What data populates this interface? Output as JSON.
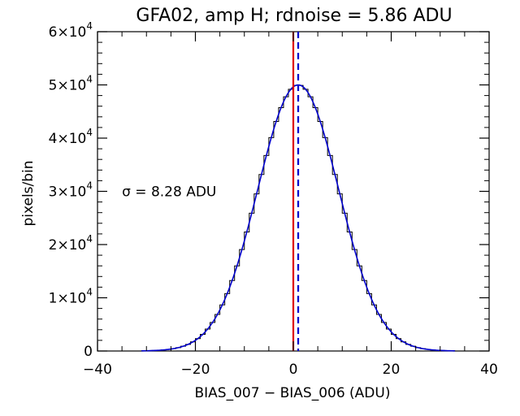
{
  "chart_data": {
    "type": "line",
    "title": "GFA02, amp H; rdnoise = 5.86 ADU",
    "xlabel": "BIAS_007 − BIAS_006 (ADU)",
    "ylabel": "pixels/bin",
    "xlim": [
      -40,
      40
    ],
    "ylim": [
      0,
      60000
    ],
    "x_ticks": [
      {
        "value": -40,
        "label": "−40"
      },
      {
        "value": -20,
        "label": "−20"
      },
      {
        "value": 0,
        "label": "0"
      },
      {
        "value": 20,
        "label": "20"
      },
      {
        "value": 40,
        "label": "40"
      }
    ],
    "y_ticks": [
      {
        "value": 0,
        "mantissa": "0",
        "exp": ""
      },
      {
        "value": 10000,
        "mantissa": "1×10",
        "exp": "4"
      },
      {
        "value": 20000,
        "mantissa": "2×10",
        "exp": "4"
      },
      {
        "value": 30000,
        "mantissa": "3×10",
        "exp": "4"
      },
      {
        "value": 40000,
        "mantissa": "4×10",
        "exp": "4"
      },
      {
        "value": 50000,
        "mantissa": "5×10",
        "exp": "4"
      },
      {
        "value": 60000,
        "mantissa": "6×10",
        "exp": "4"
      }
    ],
    "grid": false,
    "histogram": {
      "bin_width": 1,
      "range": [
        -31,
        33
      ],
      "peak": 50000,
      "mean": 1.0,
      "sigma": 8.28
    },
    "fit_curve": {
      "peak": 50000,
      "mean": 1.0,
      "sigma": 8.28,
      "color": "#0000cc"
    },
    "vlines": [
      {
        "x": 0,
        "color": "#dd0000",
        "style": "solid"
      },
      {
        "x": 1.0,
        "color": "#0000cc",
        "style": "dashed"
      }
    ],
    "annotation": {
      "symbol": "σ",
      "text": " = 8.28 ADU",
      "x": -35,
      "y": 30000
    }
  }
}
